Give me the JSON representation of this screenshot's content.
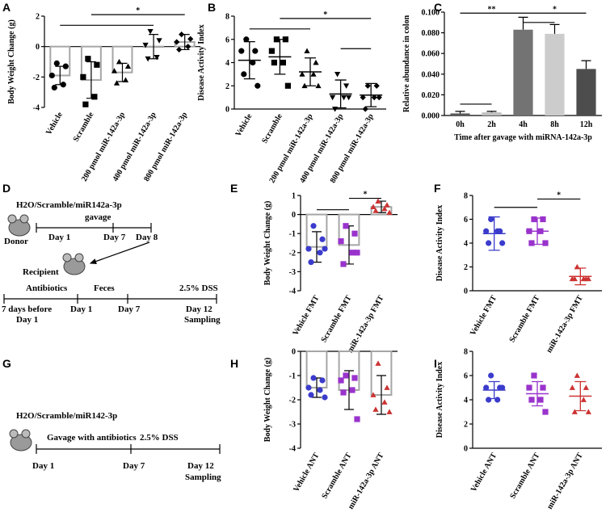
{
  "chart_data": [
    {
      "panel": "A",
      "type": "bar",
      "ylabel": "Body Weight Change (g)",
      "categories": [
        "Vehicle",
        "Scramble",
        "200 pmol miR-142a-3p",
        "400 pmol miR-142a-3p",
        "800 pmol miR-142a-3p"
      ],
      "values": [
        -1.9,
        -2.2,
        -1.7,
        0.0,
        0.3
      ],
      "errors": [
        0.6,
        1.2,
        0.6,
        0.8,
        0.5
      ],
      "points": [
        [
          -1.1,
          -1.3,
          -1.9,
          -2.5,
          -2.7
        ],
        [
          -0.8,
          -1.2,
          -2.0,
          -3.3,
          -3.8
        ],
        [
          -1.0,
          -1.3,
          -1.6,
          -2.2,
          -2.4
        ],
        [
          1.0,
          0.4,
          0.1,
          -0.7,
          -0.8
        ],
        [
          0.8,
          0.5,
          0.3,
          0.0,
          -0.2
        ]
      ],
      "markers": [
        "circle",
        "square",
        "triangle",
        "triangle-down",
        "diamond"
      ],
      "colors": [
        "#000000",
        "#000000",
        "#000000",
        "#000000",
        "#000000"
      ],
      "bar_edge": "#a6a6a6",
      "ylim": [
        -4,
        2
      ],
      "yticks": [
        -4,
        -2,
        0,
        2
      ],
      "annotations": [
        "*"
      ]
    },
    {
      "panel": "B",
      "type": "dot",
      "ylabel": "Disease Activity Index",
      "categories": [
        "Vehicle",
        "Scramble",
        "200 pmol miR-142a-3p",
        "400 pmol miR-142a-3p",
        "800 pmol miR-142a-3p"
      ],
      "values": [
        4.2,
        4.5,
        3.2,
        1.3,
        1.2
      ],
      "errors": [
        1.6,
        1.5,
        1.2,
        1.2,
        1.0
      ],
      "points": [
        [
          6,
          5,
          5,
          4,
          3,
          2
        ],
        [
          6,
          6,
          5,
          4,
          4,
          2
        ],
        [
          5,
          4,
          3,
          3,
          2,
          2
        ],
        [
          3,
          2,
          1,
          1,
          0,
          1
        ],
        [
          2,
          2,
          1,
          1,
          0,
          1
        ]
      ],
      "markers": [
        "circle",
        "square",
        "triangle",
        "triangle-down",
        "diamond"
      ],
      "colors": [
        "#000000",
        "#000000",
        "#000000",
        "#000000",
        "#000000"
      ],
      "ylim": [
        0,
        8
      ],
      "yticks": [
        0,
        2,
        4,
        6,
        8
      ],
      "annotations": [
        "*"
      ]
    },
    {
      "panel": "C",
      "type": "bar",
      "ylabel": "Relative abundance in colon",
      "xlabel": "Time after gavage with miRNA-142a-3p",
      "categories": [
        "0h",
        "2h",
        "4h",
        "8h",
        "12h"
      ],
      "values": [
        0.002,
        0.003,
        0.083,
        0.079,
        0.045
      ],
      "errors": [
        0.002,
        0.001,
        0.012,
        0.009,
        0.008
      ],
      "colors": [
        "#595959",
        "#bfbfbf",
        "#737373",
        "#cccccc",
        "#4d4d4d"
      ],
      "error_color": "#000000",
      "ylim": [
        0,
        0.1
      ],
      "yticks": [
        {
          "value": 0,
          "label": "0.000"
        },
        {
          "value": 0.02,
          "label": "0.020"
        },
        {
          "value": 0.04,
          "label": "0.040"
        },
        {
          "value": 0.06,
          "label": "0.060"
        },
        {
          "value": 0.08,
          "label": "0.080"
        },
        {
          "value": 0.1,
          "label": "0.100"
        }
      ],
      "annotations": [
        "**",
        "*"
      ]
    },
    {
      "panel": "E",
      "type": "bar",
      "ylabel": "Body Weight Change (g)",
      "categories": [
        "Vehicle FMT",
        "Scramble FMT",
        "miR-142a-3p FMT"
      ],
      "values": [
        -1.7,
        -1.6,
        0.4
      ],
      "errors": [
        0.8,
        1.0,
        0.3
      ],
      "points": [
        [
          -0.6,
          -1.3,
          -1.8,
          -2.0,
          -2.5,
          -1.8
        ],
        [
          -0.6,
          -1.0,
          -1.4,
          -2.0,
          -2.6,
          -2.0
        ],
        [
          0.7,
          0.5,
          0.4,
          0.3,
          0.2,
          0.1
        ]
      ],
      "markers": [
        "circle",
        "square",
        "triangle"
      ],
      "colors": [
        "#3b3bcc",
        "#9933cc",
        "#cc3333"
      ],
      "bar_edge": "#a6a6a6",
      "ylim": [
        -4,
        1
      ],
      "yticks": [
        -4,
        -3,
        -2,
        -1,
        0,
        1
      ],
      "annotations": [
        "*"
      ]
    },
    {
      "panel": "F",
      "type": "dot",
      "ylabel": "Disease Activity Index",
      "categories": [
        "Vehicle FMT",
        "Scramble FMT",
        "miR-142a-3p FMT"
      ],
      "values": [
        4.8,
        5.0,
        1.2
      ],
      "errors": [
        1.4,
        1.1,
        0.7
      ],
      "points": [
        [
          6,
          5,
          5,
          5,
          4,
          4
        ],
        [
          6,
          6,
          5,
          5,
          4,
          4
        ],
        [
          2,
          1,
          1,
          1,
          1,
          1
        ]
      ],
      "markers": [
        "circle",
        "square",
        "triangle"
      ],
      "colors": [
        "#3b3bcc",
        "#9933cc",
        "#cc3333"
      ],
      "ylim": [
        0,
        8
      ],
      "yticks": [
        0,
        2,
        4,
        6,
        8
      ],
      "annotations": [
        "*"
      ]
    },
    {
      "panel": "H",
      "type": "bar",
      "ylabel": "Body Weight Change (g)",
      "categories": [
        "Vehicle ANT",
        "Scramble ANT",
        "miR-142a-3p ANT"
      ],
      "values": [
        -1.5,
        -1.6,
        -1.8
      ],
      "errors": [
        0.4,
        0.8,
        0.8
      ],
      "points": [
        [
          -1.1,
          -1.2,
          -1.5,
          -1.6,
          -1.8,
          -1.9
        ],
        [
          -1.0,
          -1.1,
          -1.2,
          -1.6,
          -1.7,
          -2.8
        ],
        [
          -0.5,
          -1.5,
          -1.8,
          -2.1,
          -2.4,
          -2.5
        ]
      ],
      "markers": [
        "circle",
        "square",
        "triangle"
      ],
      "colors": [
        "#3b3bcc",
        "#9933cc",
        "#cc3333"
      ],
      "bar_edge": "#a6a6a6",
      "ylim": [
        -4,
        0
      ],
      "yticks": [
        -4,
        -3,
        -2,
        -1,
        0
      ]
    },
    {
      "panel": "I",
      "type": "dot",
      "ylabel": "Disease Activity Index",
      "categories": [
        "Vehicle ANT",
        "Scramble ANT",
        "miR-142a-3p ANT"
      ],
      "values": [
        4.8,
        4.5,
        4.3
      ],
      "errors": [
        0.7,
        1.0,
        1.2
      ],
      "points": [
        [
          6,
          5,
          5,
          4,
          4,
          5
        ],
        [
          6,
          5,
          5,
          4,
          4,
          3
        ],
        [
          6,
          5,
          5,
          4,
          3,
          3
        ]
      ],
      "markers": [
        "circle",
        "square",
        "triangle"
      ],
      "colors": [
        "#3b3bcc",
        "#9933cc",
        "#cc3333"
      ],
      "ylim": [
        0,
        8
      ],
      "yticks": [
        0,
        2,
        4,
        6,
        8
      ]
    }
  ],
  "diagram_d": {
    "panel": "D",
    "treatment": "H2O/Scramble/miR142a-3p",
    "gavage": "gavage",
    "donor": "Donor",
    "donor_days": [
      "Day 1",
      "Day 7",
      "Day 8"
    ],
    "recipient": "Recipient",
    "phases": [
      "Antibiotics",
      "Feces",
      "2.5% DSS"
    ],
    "recipient_days": [
      "7 days before",
      "Day 1",
      "Day 1",
      "Day 7",
      "Day 12",
      "Sampling"
    ]
  },
  "diagram_g": {
    "panel": "G",
    "treatment": "H2O/Scramble/miR142-3p",
    "phases": [
      "Gavage with antibiotics",
      "2.5% DSS"
    ],
    "days": [
      "Day 1",
      "Day 7",
      "Day 12",
      "Sampling"
    ]
  }
}
